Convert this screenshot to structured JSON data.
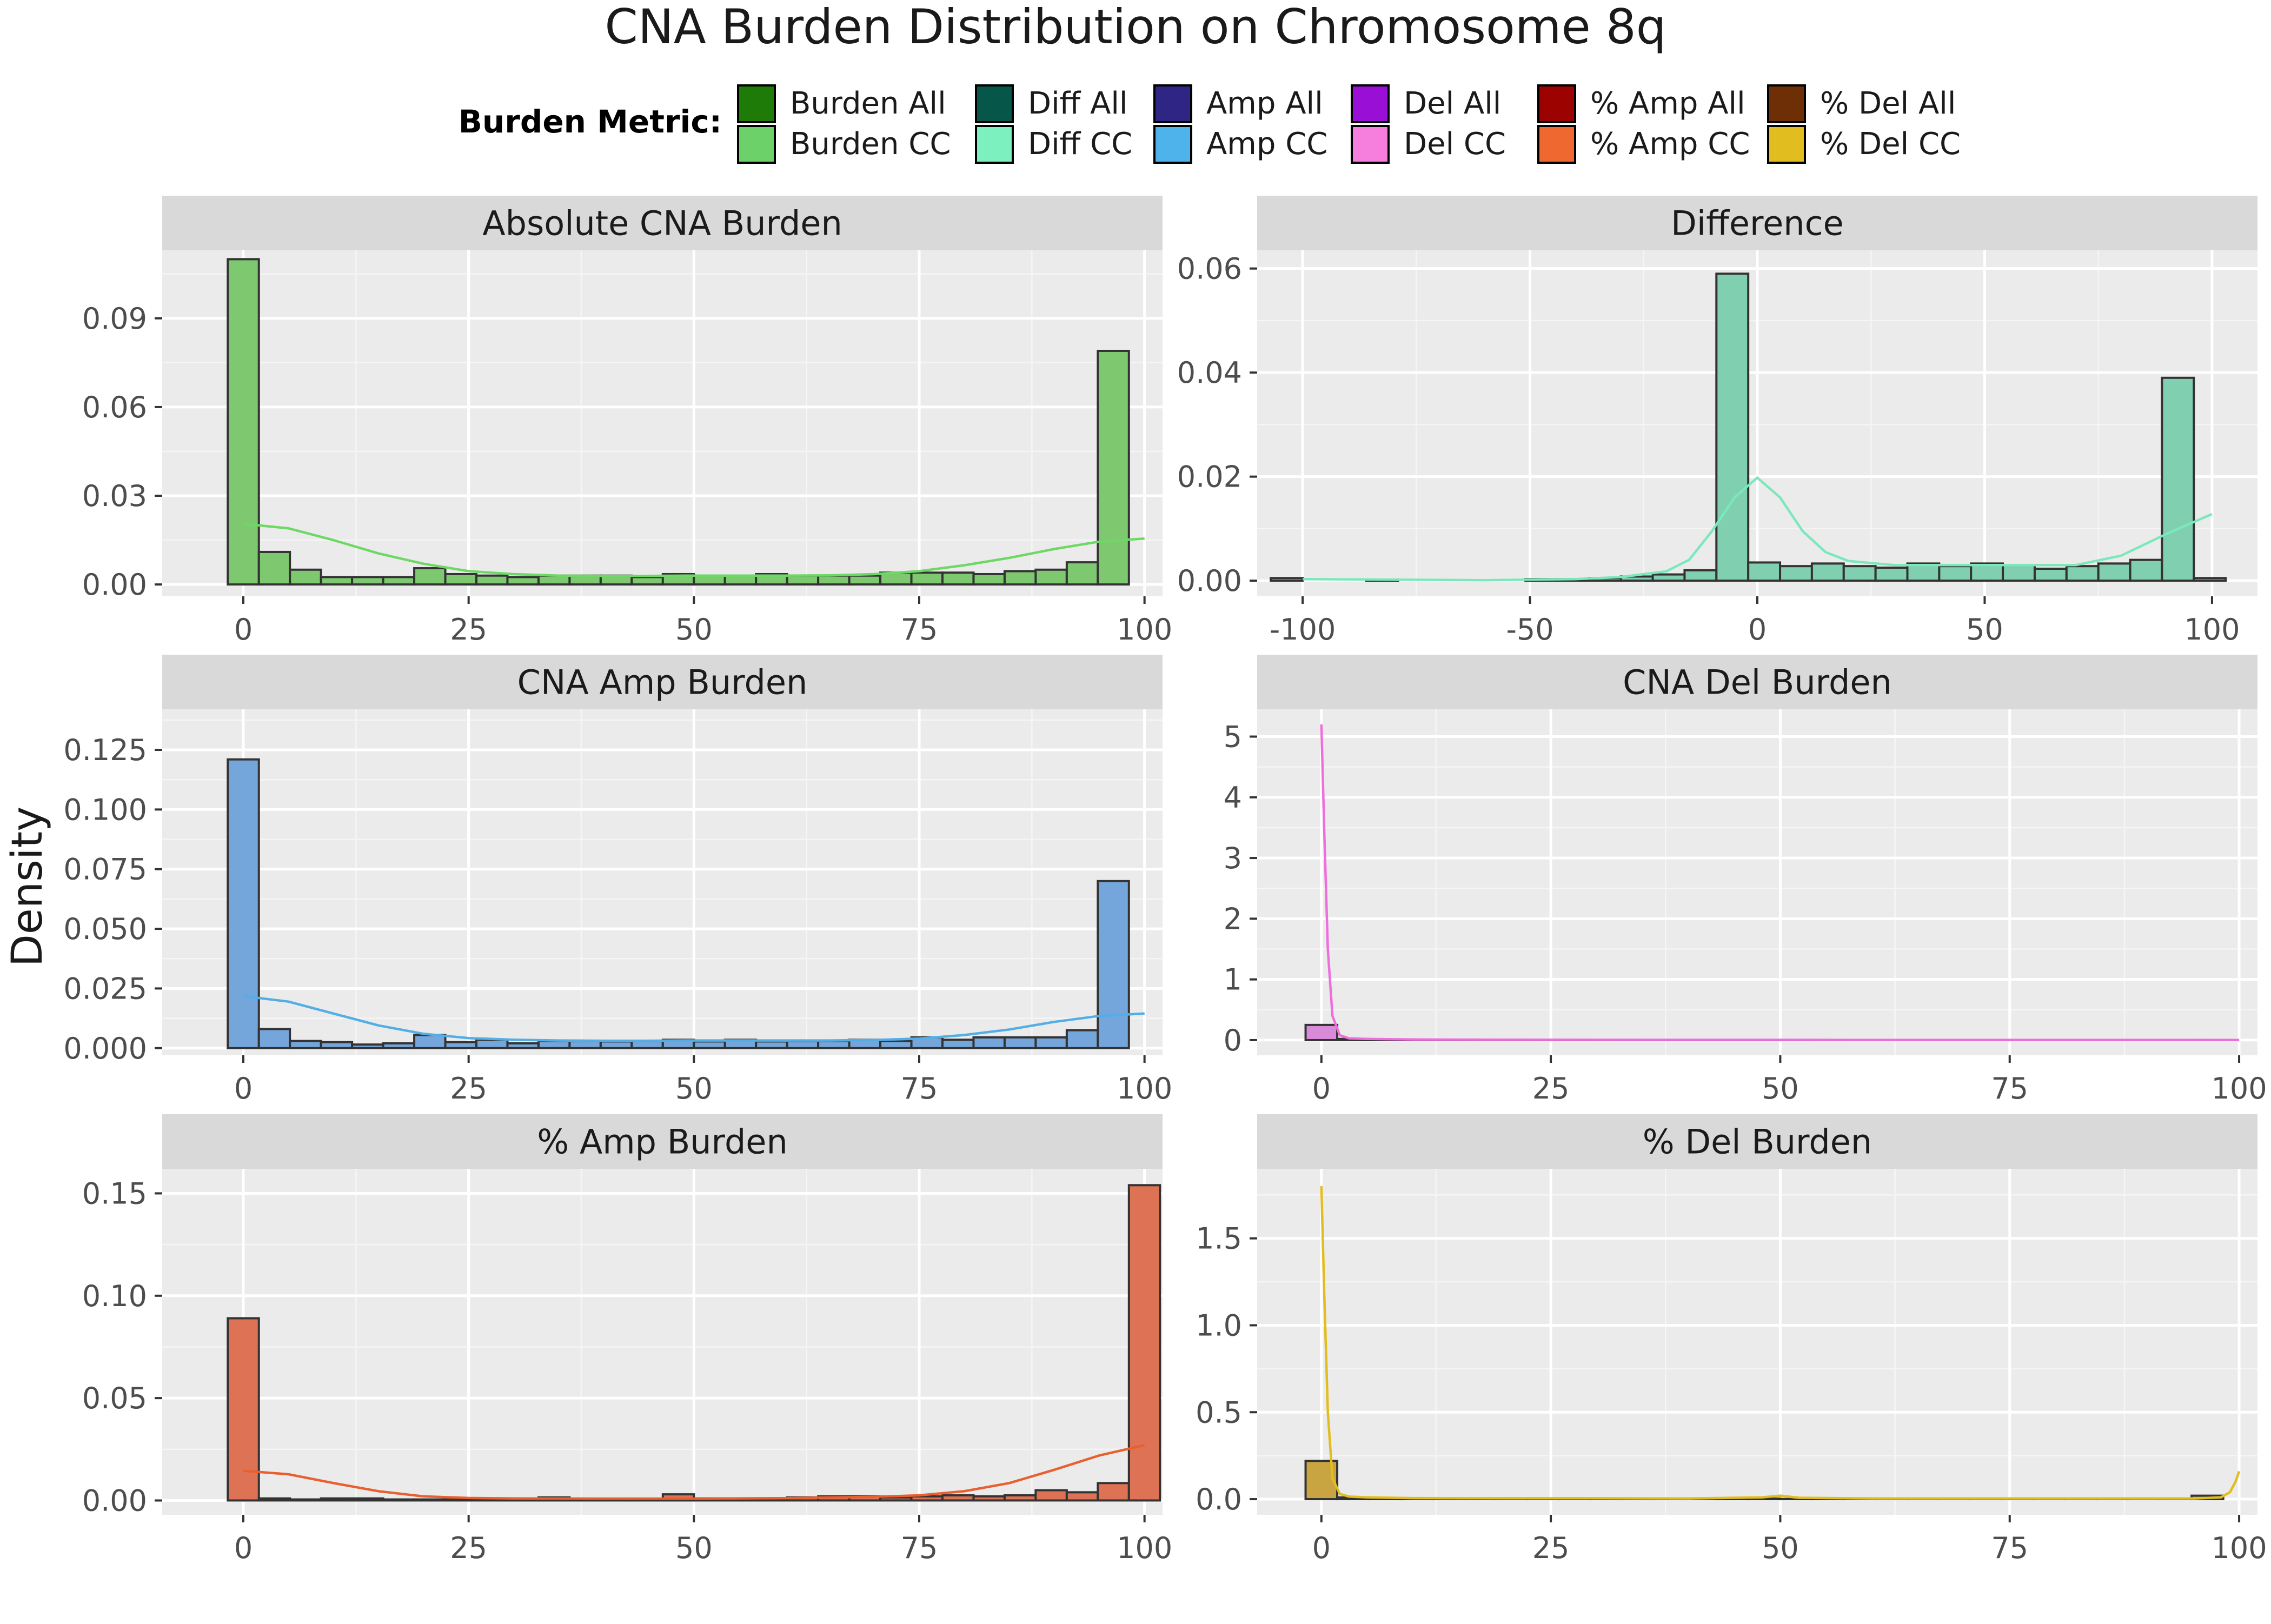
{
  "title": "CNA Burden Distribution on Chromosome 8q",
  "ylabel": "Density",
  "legend": {
    "title": "Burden Metric:",
    "items": [
      {
        "label": "Burden All",
        "color": "#1e7b08"
      },
      {
        "label": "Burden CC",
        "color": "#6dd16a"
      },
      {
        "label": "Diff All",
        "color": "#06574a"
      },
      {
        "label": "Diff CC",
        "color": "#7df0c0"
      },
      {
        "label": "Amp All",
        "color": "#2f2585"
      },
      {
        "label": "Amp CC",
        "color": "#4eb2eb"
      },
      {
        "label": "Del All",
        "color": "#9a0fd6"
      },
      {
        "label": "Del CC",
        "color": "#f67fdd"
      },
      {
        "label": "% Amp All",
        "color": "#9c0200"
      },
      {
        "label": "% Amp CC",
        "color": "#ee6830"
      },
      {
        "label": "% Del All",
        "color": "#6e2e06"
      },
      {
        "label": "% Del CC",
        "color": "#e2bd1f"
      }
    ]
  },
  "chart_data": [
    {
      "type": "histogram",
      "title": "Absolute CNA Burden",
      "fill": "#7ec86f",
      "line_color": "#6ed864",
      "xlim": [
        -9,
        102
      ],
      "ylim": [
        -0.004,
        0.113
      ],
      "xticks": [
        0,
        25,
        50,
        75,
        100
      ],
      "xtick_labels": [
        "0",
        "25",
        "50",
        "75",
        "100"
      ],
      "yticks": [
        0,
        0.03,
        0.06,
        0.09
      ],
      "ytick_labels": [
        "0.00",
        "0.03",
        "0.06",
        "0.09"
      ],
      "bin_start": -1.724,
      "bin_width": 3.448,
      "values": [
        0.11,
        0.011,
        0.005,
        0.0025,
        0.0025,
        0.0025,
        0.0055,
        0.0035,
        0.003,
        0.0025,
        0.003,
        0.003,
        0.003,
        0.0025,
        0.0035,
        0.003,
        0.003,
        0.0035,
        0.003,
        0.003,
        0.003,
        0.004,
        0.004,
        0.004,
        0.0035,
        0.0045,
        0.005,
        0.0075,
        0.079
      ],
      "density_x": [
        0,
        5,
        10,
        15,
        20,
        25,
        30,
        35,
        40,
        45,
        50,
        55,
        60,
        65,
        70,
        75,
        80,
        85,
        90,
        95,
        100
      ],
      "density_y": [
        0.0205,
        0.019,
        0.015,
        0.0105,
        0.007,
        0.0045,
        0.0035,
        0.003,
        0.0029,
        0.0029,
        0.003,
        0.003,
        0.003,
        0.0031,
        0.0035,
        0.0045,
        0.0065,
        0.009,
        0.012,
        0.0145,
        0.0155
      ]
    },
    {
      "type": "histogram",
      "title": "Difference",
      "fill": "#7fcfb0",
      "line_color": "#7be8bc",
      "xlim": [
        -110,
        110
      ],
      "ylim": [
        -0.003,
        0.0635
      ],
      "xticks": [
        -100,
        -50,
        0,
        50,
        100
      ],
      "xtick_labels": [
        "-100",
        "-50",
        "0",
        "50",
        "100"
      ],
      "yticks": [
        0,
        0.02,
        0.04,
        0.06
      ],
      "ytick_labels": [
        "0.00",
        "0.02",
        "0.04",
        "0.06"
      ],
      "bin_start": -107,
      "bin_width": 7,
      "values": [
        0.0005,
        0,
        0,
        0.0002,
        0,
        0,
        0,
        0,
        0.0003,
        0.0003,
        0.0005,
        0.0008,
        0.0012,
        0.002,
        0.059,
        0.0035,
        0.0028,
        0.0033,
        0.0028,
        0.0025,
        0.0033,
        0.0028,
        0.0033,
        0.003,
        0.0023,
        0.0028,
        0.0033,
        0.004,
        0.039,
        0.0005
      ],
      "density_x": [
        -100,
        -80,
        -60,
        -40,
        -30,
        -20,
        -15,
        -10,
        -5,
        0,
        5,
        10,
        15,
        20,
        30,
        40,
        50,
        60,
        70,
        80,
        90,
        100
      ],
      "density_y": [
        0.0003,
        0.0002,
        0.0001,
        0.0003,
        0.0007,
        0.0018,
        0.004,
        0.0095,
        0.016,
        0.0198,
        0.016,
        0.0095,
        0.0055,
        0.0038,
        0.003,
        0.003,
        0.003,
        0.003,
        0.003,
        0.0048,
        0.009,
        0.0128
      ]
    },
    {
      "type": "histogram",
      "title": "CNA Amp Burden",
      "fill": "#74a6db",
      "line_color": "#53aee6",
      "xlim": [
        -9,
        102
      ],
      "ylim": [
        -0.003,
        0.142
      ],
      "xticks": [
        0,
        25,
        50,
        75,
        100
      ],
      "xtick_labels": [
        "0",
        "25",
        "50",
        "75",
        "100"
      ],
      "yticks": [
        0,
        0.025,
        0.05,
        0.075,
        0.1,
        0.125
      ],
      "ytick_labels": [
        "0.000",
        "0.025",
        "0.050",
        "0.075",
        "0.100",
        "0.125"
      ],
      "bin_start": -1.724,
      "bin_width": 3.448,
      "values": [
        0.121,
        0.008,
        0.003,
        0.0025,
        0.0015,
        0.002,
        0.0055,
        0.0025,
        0.0035,
        0.002,
        0.003,
        0.003,
        0.0028,
        0.003,
        0.0035,
        0.0028,
        0.0035,
        0.0028,
        0.003,
        0.003,
        0.0035,
        0.003,
        0.0045,
        0.0035,
        0.0045,
        0.0045,
        0.0045,
        0.0075,
        0.07
      ],
      "density_x": [
        0,
        5,
        10,
        15,
        20,
        25,
        30,
        35,
        40,
        45,
        50,
        55,
        60,
        65,
        70,
        75,
        80,
        85,
        90,
        95,
        100
      ],
      "density_y": [
        0.0218,
        0.0195,
        0.0145,
        0.0095,
        0.006,
        0.0042,
        0.0035,
        0.0032,
        0.0031,
        0.0031,
        0.0032,
        0.0032,
        0.0032,
        0.0032,
        0.0034,
        0.004,
        0.0055,
        0.0078,
        0.011,
        0.0135,
        0.0145
      ]
    },
    {
      "type": "histogram",
      "title": "CNA Del Burden",
      "fill": "#d98ad9",
      "line_color": "#ee6fdc",
      "xlim": [
        -7,
        102
      ],
      "ylim": [
        -0.25,
        5.45
      ],
      "xticks": [
        0,
        25,
        50,
        75,
        100
      ],
      "xtick_labels": [
        "0",
        "25",
        "50",
        "75",
        "100"
      ],
      "yticks": [
        0,
        1,
        2,
        3,
        4,
        5
      ],
      "ytick_labels": [
        "0",
        "1",
        "2",
        "3",
        "4",
        "5"
      ],
      "bin_start": -1.724,
      "bin_width": 3.448,
      "values": [
        0.25,
        0.02,
        0.005,
        0.003,
        0.002,
        0.002,
        0.001,
        0.001,
        0.001,
        0.001,
        0.001,
        0.001,
        0.001,
        0.001,
        0.001,
        0.001,
        0.001,
        0.001,
        0.001,
        0.001,
        0.001,
        0.001,
        0.001,
        0.001,
        0.001,
        0.001,
        0.001,
        0.001,
        0.004
      ],
      "density_x": [
        0,
        0.3,
        0.7,
        1.2,
        2,
        3,
        5,
        10,
        20,
        40,
        60,
        80,
        100
      ],
      "density_y": [
        5.2,
        3.5,
        1.5,
        0.4,
        0.08,
        0.03,
        0.02,
        0.01,
        0.006,
        0.004,
        0.003,
        0.003,
        0.002
      ]
    },
    {
      "type": "histogram",
      "title": "% Amp Burden",
      "fill": "#dd7255",
      "line_color": "#e8602f",
      "xlim": [
        -9,
        102
      ],
      "ylim": [
        -0.007,
        0.162
      ],
      "xticks": [
        0,
        25,
        50,
        75,
        100
      ],
      "xtick_labels": [
        "0",
        "25",
        "50",
        "75",
        "100"
      ],
      "yticks": [
        0,
        0.05,
        0.1,
        0.15
      ],
      "ytick_labels": [
        "0.00",
        "0.05",
        "0.10",
        "0.15"
      ],
      "bin_start": -1.724,
      "bin_width": 3.448,
      "values": [
        0.089,
        0.001,
        0.0005,
        0.001,
        0.001,
        0.0005,
        0.0005,
        0.0005,
        0.0005,
        0.0005,
        0.0015,
        0.0005,
        0.0005,
        0.0005,
        0.003,
        0.001,
        0.001,
        0.001,
        0.0015,
        0.002,
        0.002,
        0.0015,
        0.002,
        0.0025,
        0.002,
        0.0025,
        0.005,
        0.004,
        0.0085,
        0.154
      ],
      "density_x": [
        0,
        5,
        10,
        15,
        20,
        25,
        30,
        40,
        50,
        60,
        70,
        75,
        80,
        85,
        90,
        95,
        100
      ],
      "density_y": [
        0.0145,
        0.0128,
        0.0085,
        0.0045,
        0.002,
        0.0012,
        0.001,
        0.0009,
        0.0009,
        0.0011,
        0.0018,
        0.0025,
        0.0045,
        0.0085,
        0.015,
        0.022,
        0.027
      ]
    },
    {
      "type": "histogram",
      "title": "% Del Burden",
      "fill": "#c8a540",
      "line_color": "#e2bd1f",
      "xlim": [
        -7,
        102
      ],
      "ylim": [
        -0.09,
        1.9
      ],
      "xticks": [
        0,
        25,
        50,
        75,
        100
      ],
      "xtick_labels": [
        "0",
        "25",
        "50",
        "75",
        "100"
      ],
      "yticks": [
        0,
        0.5,
        1,
        1.5
      ],
      "ytick_labels": [
        "0.0",
        "0.5",
        "1.0",
        "1.5"
      ],
      "bin_start": -1.724,
      "bin_width": 3.448,
      "values": [
        0.22,
        0.01,
        0.003,
        0.002,
        0.002,
        0.001,
        0.001,
        0.001,
        0.001,
        0.001,
        0.001,
        0.001,
        0.001,
        0.001,
        0.003,
        0.001,
        0.001,
        0.001,
        0.001,
        0.001,
        0.001,
        0.001,
        0.001,
        0.001,
        0.001,
        0.001,
        0.001,
        0.001,
        0.02
      ],
      "density_x": [
        0,
        0.3,
        0.7,
        1.2,
        2,
        3,
        5,
        10,
        20,
        30,
        40,
        48,
        50,
        52,
        60,
        80,
        95,
        98,
        99,
        99.6,
        100
      ],
      "density_y": [
        1.8,
        1.2,
        0.5,
        0.12,
        0.03,
        0.015,
        0.01,
        0.006,
        0.005,
        0.005,
        0.004,
        0.01,
        0.02,
        0.008,
        0.004,
        0.004,
        0.004,
        0.01,
        0.04,
        0.1,
        0.16
      ]
    }
  ]
}
